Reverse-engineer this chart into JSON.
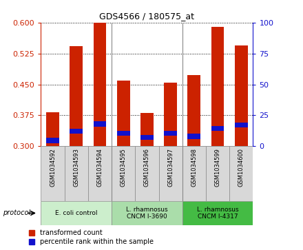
{
  "title": "GDS4566 / 180575_at",
  "samples": [
    "GSM1034592",
    "GSM1034593",
    "GSM1034594",
    "GSM1034595",
    "GSM1034596",
    "GSM1034597",
    "GSM1034598",
    "GSM1034599",
    "GSM1034600"
  ],
  "transformed_counts": [
    0.383,
    0.542,
    0.6,
    0.46,
    0.381,
    0.455,
    0.472,
    0.59,
    0.545
  ],
  "percentile_bottoms": [
    0.308,
    0.33,
    0.348,
    0.325,
    0.315,
    0.325,
    0.318,
    0.337,
    0.345
  ],
  "percentile_heights": [
    0.012,
    0.012,
    0.012,
    0.012,
    0.012,
    0.012,
    0.012,
    0.012,
    0.012
  ],
  "bar_base": 0.3,
  "ylim_left": [
    0.3,
    0.6
  ],
  "ylim_right": [
    0,
    100
  ],
  "yticks_left": [
    0.3,
    0.375,
    0.45,
    0.525,
    0.6
  ],
  "yticks_right": [
    0,
    25,
    50,
    75,
    100
  ],
  "bar_color_red": "#cc2200",
  "bar_color_blue": "#1111cc",
  "protocol_groups": [
    {
      "label": "E. coli control",
      "start": 0,
      "end": 3,
      "color": "#cceecc"
    },
    {
      "label": "L. rhamnosus\nCNCM I-3690",
      "start": 3,
      "end": 6,
      "color": "#aaddaa"
    },
    {
      "label": "L. rhamnosus\nCNCM I-4317",
      "start": 6,
      "end": 9,
      "color": "#44bb44"
    }
  ],
  "legend_red": "transformed count",
  "legend_blue": "percentile rank within the sample",
  "bar_width": 0.55,
  "grid_linestyle": ":",
  "sample_box_color": "#d8d8d8",
  "group_border_color": "#888888"
}
